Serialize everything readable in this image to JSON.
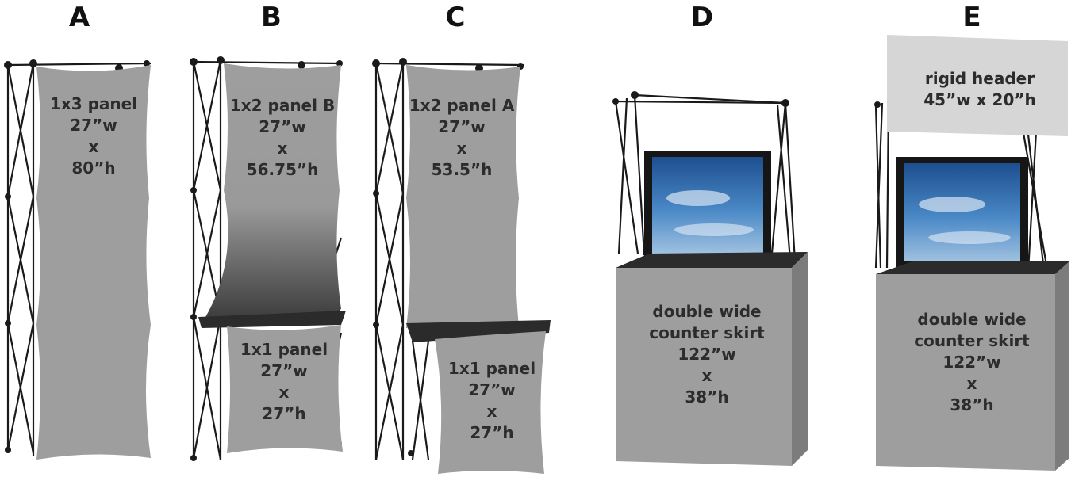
{
  "columns": [
    {
      "letter": "A",
      "panels": [
        {
          "lines": [
            "1x3 panel",
            "27”w",
            "x",
            "80”h"
          ]
        }
      ]
    },
    {
      "letter": "B",
      "panels": [
        {
          "lines": [
            "1x2 panel B",
            "27”w",
            "x",
            "56.75”h"
          ]
        },
        {
          "lines": [
            "1x1 panel",
            "27”w",
            "x",
            "27”h"
          ]
        }
      ]
    },
    {
      "letter": "C",
      "panels": [
        {
          "lines": [
            "1x2 panel A",
            "27”w",
            "x",
            "53.5”h"
          ]
        },
        {
          "lines": [
            "1x1 panel",
            "27”w",
            "x",
            "27”h"
          ]
        }
      ]
    },
    {
      "letter": "D",
      "panels": [
        {
          "lines": [
            "double wide",
            "counter skirt",
            "122”w",
            "x",
            "38”h"
          ]
        }
      ]
    },
    {
      "letter": "E",
      "panels": [
        {
          "lines": [
            "rigid header",
            "45”w x 20”h"
          ]
        },
        {
          "lines": [
            "double wide",
            "counter skirt",
            "122”w",
            "x",
            "38”h"
          ]
        }
      ]
    }
  ],
  "colors": {
    "panel": "#9e9e9e",
    "frame": "#1a1a1a",
    "counter_top": "#2b2b2b",
    "header": "#d6d6d6",
    "screen_sky": "#3f7fc0"
  }
}
